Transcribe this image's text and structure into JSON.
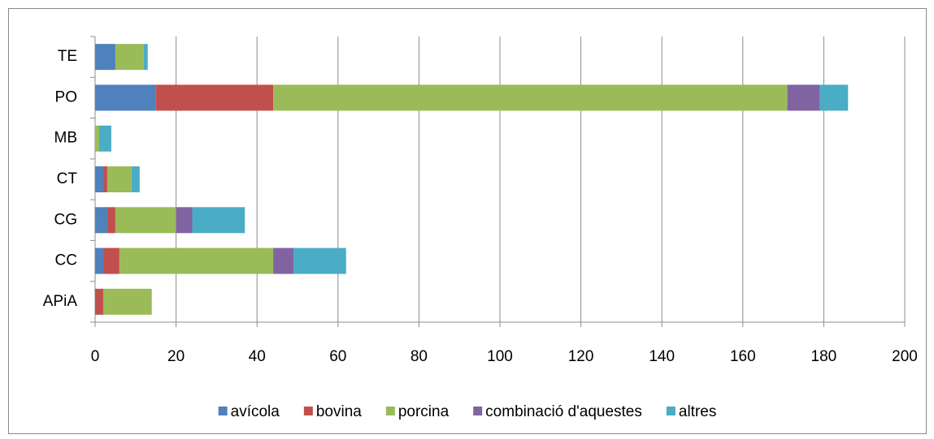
{
  "chart_data": {
    "type": "stacked-bar-horizontal",
    "categories": [
      "TE",
      "PO",
      "MB",
      "CT",
      "CG",
      "CC",
      "APiA"
    ],
    "series": [
      {
        "name": "avícola",
        "color": "#4f81bd",
        "values": [
          5,
          15,
          0,
          2,
          3,
          2,
          0
        ]
      },
      {
        "name": "bovina",
        "color": "#c0504d",
        "values": [
          0,
          29,
          0,
          1,
          2,
          4,
          2
        ]
      },
      {
        "name": "porcina",
        "color": "#9bbb59",
        "values": [
          7,
          127,
          1,
          6,
          15,
          38,
          12
        ]
      },
      {
        "name": "combinació d'aquestes",
        "color": "#8064a2",
        "values": [
          0,
          8,
          0,
          0,
          4,
          5,
          0
        ]
      },
      {
        "name": "altres",
        "color": "#4bacc6",
        "values": [
          1,
          7,
          3,
          2,
          13,
          13,
          0
        ]
      }
    ],
    "xlim": [
      0,
      200
    ],
    "xticks": [
      0,
      20,
      40,
      60,
      80,
      100,
      120,
      140,
      160,
      180,
      200
    ],
    "grid": true,
    "legend": "bottom"
  }
}
